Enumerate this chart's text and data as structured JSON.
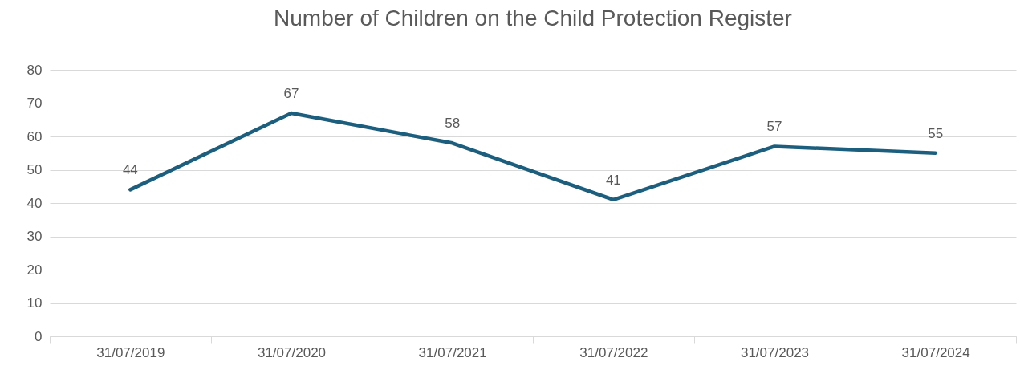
{
  "chart_data": {
    "type": "line",
    "title": "Number of Children on the Child Protection Register",
    "categories": [
      "31/07/2019",
      "31/07/2020",
      "31/07/2021",
      "31/07/2022",
      "31/07/2023",
      "31/07/2024"
    ],
    "series": [
      {
        "color": "#1b5e7e",
        "values": [
          44,
          67,
          58,
          41,
          57,
          55
        ]
      }
    ],
    "ylim": [
      0,
      80
    ],
    "yticks": [
      0,
      10,
      20,
      30,
      40,
      50,
      60,
      70,
      80
    ],
    "grid": "y",
    "data_labels": true,
    "marker": "none",
    "line_style": "solid"
  }
}
